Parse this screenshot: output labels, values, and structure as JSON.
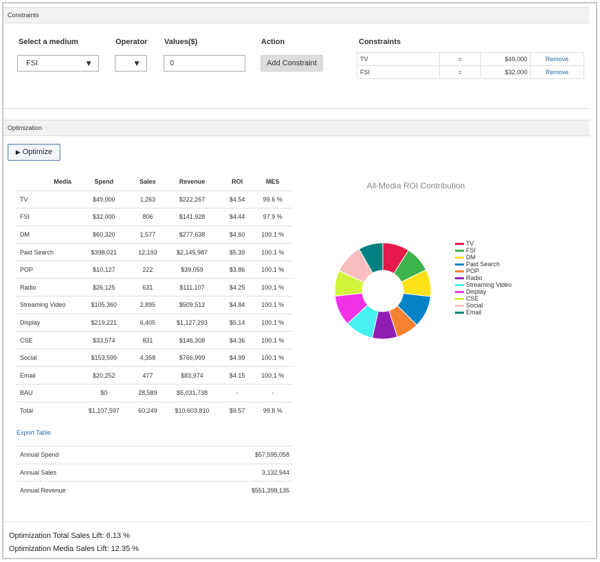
{
  "constraints_section": {
    "header": "Constraints",
    "medium_label": "Select a medium",
    "medium_value": "FSI",
    "operator_label": "Operator",
    "operator_value": "",
    "values_label": "Values($)",
    "values_value": "0",
    "action_label": "Action",
    "add_button": "Add Constraint",
    "list_label": "Constraints",
    "rows": [
      {
        "medium": "TV",
        "op": "=",
        "value": "$49,000",
        "action": "Remove"
      },
      {
        "medium": "FSI",
        "op": "=",
        "value": "$32,000",
        "action": "Remove"
      }
    ]
  },
  "optimization_section": {
    "header": "Optimization",
    "optimize_button": "Optimize",
    "table": {
      "columns": [
        "Media",
        "Spend",
        "Sales",
        "Revenue",
        "ROI",
        "MES"
      ],
      "rows": [
        [
          "TV",
          "$49,000",
          "1,263",
          "$222,267",
          "$4.54",
          "99.6 %"
        ],
        [
          "FSI",
          "$32,000",
          "806",
          "$141,928",
          "$4.44",
          "97.9 %"
        ],
        [
          "DM",
          "$60,320",
          "1,577",
          "$277,638",
          "$4.60",
          "100.1 %"
        ],
        [
          "Paid Search",
          "$398,021",
          "12,193",
          "$2,145,987",
          "$5.39",
          "100.1 %"
        ],
        [
          "POP",
          "$10,127",
          "222",
          "$39,059",
          "$3.86",
          "100.1 %"
        ],
        [
          "Radio",
          "$26,125",
          "631",
          "$111,107",
          "$4.25",
          "100.1 %"
        ],
        [
          "Streaming Video",
          "$105,360",
          "2,895",
          "$509,512",
          "$4.84",
          "100.1 %"
        ],
        [
          "Display",
          "$219,221",
          "6,405",
          "$1,127,293",
          "$5.14",
          "100.1 %"
        ],
        [
          "CSE",
          "$33,574",
          "831",
          "$146,308",
          "$4.36",
          "100.1 %"
        ],
        [
          "Social",
          "$153,599",
          "4,358",
          "$766,999",
          "$4.99",
          "100.1 %"
        ],
        [
          "Email",
          "$20,252",
          "477",
          "$83,974",
          "$4.15",
          "100.1 %"
        ],
        [
          "BAU",
          "$0",
          "28,589",
          "$5,031,738",
          "-",
          "-"
        ],
        [
          "Total",
          "$1,107,597",
          "60,249",
          "$10,603,810",
          "$9.57",
          "99.8 %"
        ]
      ]
    },
    "export_link": "Export Table",
    "annual": [
      {
        "label": "Annual Spend",
        "value": "$57,595,058"
      },
      {
        "label": "Annual Sales",
        "value": "3,132,944"
      },
      {
        "label": "Annual Revenue",
        "value": "$551,398,135"
      }
    ],
    "lift_total": "Optimization Total Sales Lift: 6.13 %",
    "lift_media": "Optimization Media Sales Lift: 12.35 %"
  },
  "chart_data": {
    "type": "pie",
    "title": "All-Media ROI Contribution",
    "donut": true,
    "legend_position": "right",
    "categories": [
      "TV",
      "FSI",
      "DM",
      "Paid Search",
      "POP",
      "Radio",
      "Streaming Video",
      "Display",
      "CSE",
      "Social",
      "Email"
    ],
    "values": [
      4.54,
      4.44,
      4.6,
      5.39,
      3.86,
      4.25,
      4.84,
      5.14,
      4.36,
      4.99,
      4.15
    ],
    "colors": [
      "#e6194b",
      "#3cb44b",
      "#ffe119",
      "#0082c8",
      "#f58231",
      "#911eb4",
      "#46f0f0",
      "#f032e6",
      "#d2f53c",
      "#fabebe",
      "#008080"
    ]
  }
}
